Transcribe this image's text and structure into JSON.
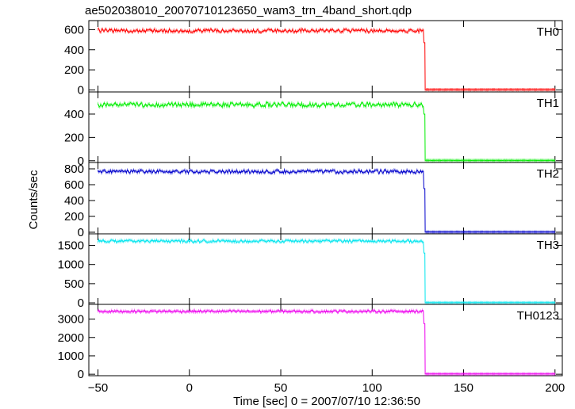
{
  "chart_data": {
    "type": "line",
    "title": "ae502038010_20070710123650_wam3_trn_4band_short.qdp",
    "xlabel": "Time [sec] 0 = 2007/07/10 12:36:50",
    "ylabel": "Counts/sec",
    "xlim": [
      -55,
      204
    ],
    "x_ticks": [
      -50,
      0,
      50,
      100,
      150,
      200
    ],
    "x_tick_labels": [
      "−50",
      "0",
      "50",
      "100",
      "150",
      "200"
    ],
    "cutoff_time": 129,
    "panels": [
      {
        "name": "TH0",
        "color": "#ff0000",
        "ylim": [
          -20,
          690
        ],
        "y_ticks": [
          0,
          200,
          400,
          600
        ],
        "y_tick_labels": [
          "0",
          "200",
          "400",
          "600"
        ],
        "segments": [
          {
            "x": [
              -50,
              128.3
            ],
            "level": 590,
            "noise": 18
          },
          {
            "x": [
              128.3,
              128.8
            ],
            "level": 470,
            "noise": 0
          },
          {
            "x": [
              129,
              200
            ],
            "level": 3,
            "noise": 1
          }
        ]
      },
      {
        "name": "TH1",
        "color": "#00ee00",
        "ylim": [
          -15,
          590
        ],
        "y_ticks": [
          0,
          200,
          400
        ],
        "y_tick_labels": [
          "0",
          "200",
          "400"
        ],
        "segments": [
          {
            "x": [
              -50,
              128.3
            ],
            "level": 480,
            "noise": 20
          },
          {
            "x": [
              128.3,
              128.8
            ],
            "level": 400,
            "noise": 0
          },
          {
            "x": [
              129,
              200
            ],
            "level": 3,
            "noise": 1
          }
        ]
      },
      {
        "name": "TH2",
        "color": "#0000cc",
        "ylim": [
          -20,
          880
        ],
        "y_ticks": [
          0,
          200,
          400,
          600,
          800
        ],
        "y_tick_labels": [
          "0",
          "200",
          "400",
          "600",
          "800"
        ],
        "segments": [
          {
            "x": [
              -50,
              128.3
            ],
            "level": 765,
            "noise": 22
          },
          {
            "x": [
              128.3,
              128.8
            ],
            "level": 550,
            "noise": 0
          },
          {
            "x": [
              129,
              200
            ],
            "level": 3,
            "noise": 1
          }
        ]
      },
      {
        "name": "TH3",
        "color": "#00e5ee",
        "ylim": [
          -40,
          1800
        ],
        "y_ticks": [
          0,
          500,
          1000,
          1500
        ],
        "y_tick_labels": [
          "0",
          "500",
          "1000",
          "1500"
        ],
        "segments": [
          {
            "x": [
              -50,
              128.3
            ],
            "level": 1610,
            "noise": 35
          },
          {
            "x": [
              128.3,
              128.8
            ],
            "level": 1300,
            "noise": 0
          },
          {
            "x": [
              129,
              200
            ],
            "level": 5,
            "noise": 2
          }
        ]
      },
      {
        "name": "TH0123",
        "color": "#ee00ee",
        "ylim": [
          -80,
          3800
        ],
        "y_ticks": [
          0,
          1000,
          2000,
          3000
        ],
        "y_tick_labels": [
          "0",
          "1000",
          "2000",
          "3000"
        ],
        "segments": [
          {
            "x": [
              -50,
              128.3
            ],
            "level": 3420,
            "noise": 60
          },
          {
            "x": [
              128.3,
              128.8
            ],
            "level": 2750,
            "noise": 0
          },
          {
            "x": [
              129,
              200
            ],
            "level": 15,
            "noise": 3
          }
        ]
      }
    ]
  }
}
